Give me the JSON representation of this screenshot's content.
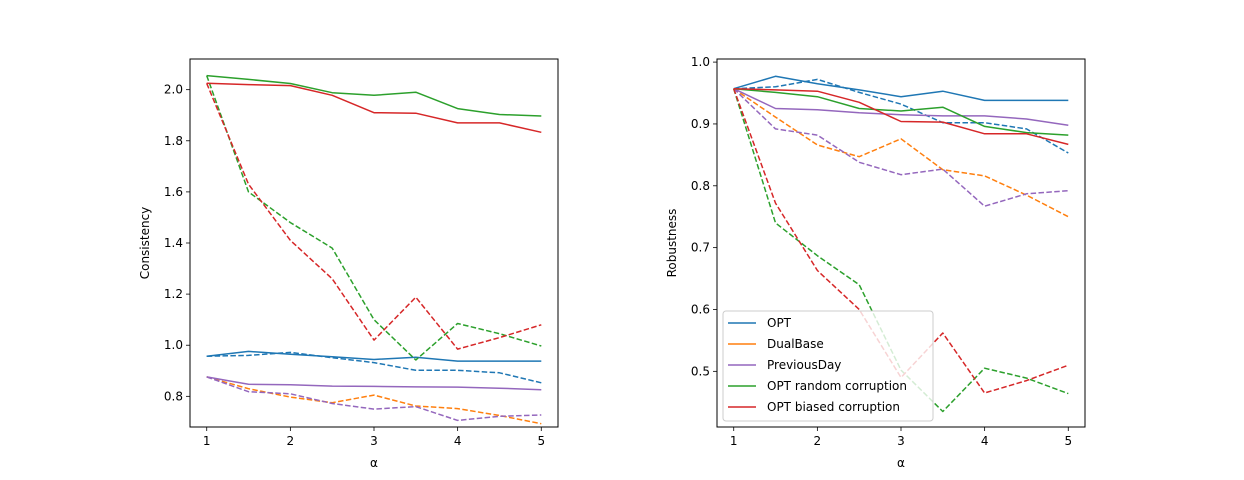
{
  "colors": {
    "OPT": "#1f77b4",
    "DualBase": "#ff7f0e",
    "PreviousDay": "#9467bd",
    "OPT random corruption": "#2ca02c",
    "OPT biased corruption": "#d62728"
  },
  "legend": {
    "location": "lower-left of right panel",
    "entries": [
      "OPT",
      "DualBase",
      "PreviousDay",
      "OPT random corruption",
      "OPT biased corruption"
    ]
  },
  "chart_data": [
    {
      "type": "line",
      "title": "",
      "xlabel": "α",
      "ylabel": "Consistency",
      "xlim": [
        0.8,
        5.2
      ],
      "ylim": [
        0.68,
        2.12
      ],
      "xticks": [
        1,
        2,
        3,
        4,
        5
      ],
      "xtick_labels": [
        "1",
        "2",
        "3",
        "4",
        "5"
      ],
      "yticks": [
        0.8,
        1.0,
        1.2,
        1.4,
        1.6,
        1.8,
        2.0
      ],
      "ytick_labels": [
        "0.8",
        "1.0",
        "1.2",
        "1.4",
        "1.6",
        "1.8",
        "2.0"
      ],
      "grid": false,
      "x": [
        1,
        1.5,
        2,
        2.5,
        3,
        3.5,
        4,
        4.5,
        5
      ],
      "series": [
        {
          "name": "OPT",
          "style": "solid",
          "values": [
            0.957,
            0.976,
            0.965,
            0.955,
            0.944,
            0.953,
            0.938,
            0.938,
            0.938
          ]
        },
        {
          "name": "OPT",
          "style": "dashed",
          "values": [
            0.957,
            0.96,
            0.972,
            0.951,
            0.932,
            0.902,
            0.902,
            0.892,
            0.853
          ]
        },
        {
          "name": "DualBase",
          "style": "dashed",
          "values": [
            0.876,
            0.83,
            0.797,
            0.775,
            0.805,
            0.762,
            0.752,
            0.725,
            0.693
          ]
        },
        {
          "name": "PreviousDay",
          "style": "solid",
          "values": [
            0.876,
            0.847,
            0.845,
            0.84,
            0.839,
            0.837,
            0.836,
            0.832,
            0.826
          ]
        },
        {
          "name": "PreviousDay",
          "style": "dashed",
          "values": [
            0.876,
            0.818,
            0.81,
            0.772,
            0.75,
            0.76,
            0.706,
            0.722,
            0.727
          ]
        },
        {
          "name": "OPT random corruption",
          "style": "solid",
          "values": [
            2.055,
            2.04,
            2.024,
            1.988,
            1.978,
            1.99,
            1.926,
            1.903,
            1.897
          ]
        },
        {
          "name": "OPT random corruption",
          "style": "dashed",
          "values": [
            2.055,
            1.6,
            1.48,
            1.38,
            1.1,
            0.942,
            1.085,
            1.045,
            0.997
          ]
        },
        {
          "name": "OPT biased corruption",
          "style": "solid",
          "values": [
            2.025,
            2.02,
            2.016,
            1.978,
            1.91,
            1.908,
            1.87,
            1.87,
            1.833
          ]
        },
        {
          "name": "OPT biased corruption",
          "style": "dashed",
          "values": [
            2.025,
            1.63,
            1.41,
            1.26,
            1.02,
            1.188,
            0.985,
            1.03,
            1.08
          ]
        }
      ]
    },
    {
      "type": "line",
      "title": "",
      "xlabel": "α",
      "ylabel": "Robustness",
      "xlim": [
        0.8,
        5.2
      ],
      "ylim": [
        0.41,
        1.005
      ],
      "xticks": [
        1,
        2,
        3,
        4,
        5
      ],
      "xtick_labels": [
        "1",
        "2",
        "3",
        "4",
        "5"
      ],
      "yticks": [
        0.5,
        0.6,
        0.7,
        0.8,
        0.9,
        1.0
      ],
      "ytick_labels": [
        "0.5",
        "0.6",
        "0.7",
        "0.8",
        "0.9",
        "1.0"
      ],
      "grid": false,
      "x": [
        1,
        1.5,
        2,
        2.5,
        3,
        3.5,
        4,
        4.5,
        5
      ],
      "series": [
        {
          "name": "OPT",
          "style": "solid",
          "values": [
            0.957,
            0.977,
            0.965,
            0.955,
            0.944,
            0.953,
            0.938,
            0.938,
            0.938
          ]
        },
        {
          "name": "OPT",
          "style": "dashed",
          "values": [
            0.957,
            0.96,
            0.972,
            0.951,
            0.932,
            0.902,
            0.902,
            0.892,
            0.853
          ]
        },
        {
          "name": "DualBase",
          "style": "dashed",
          "values": [
            0.957,
            0.911,
            0.866,
            0.847,
            0.876,
            0.826,
            0.816,
            0.785,
            0.75
          ]
        },
        {
          "name": "PreviousDay",
          "style": "solid",
          "values": [
            0.957,
            0.925,
            0.923,
            0.918,
            0.915,
            0.913,
            0.913,
            0.908,
            0.898
          ]
        },
        {
          "name": "PreviousDay",
          "style": "dashed",
          "values": [
            0.957,
            0.892,
            0.882,
            0.838,
            0.818,
            0.827,
            0.767,
            0.787,
            0.792
          ]
        },
        {
          "name": "OPT random corruption",
          "style": "solid",
          "values": [
            0.957,
            0.951,
            0.944,
            0.925,
            0.921,
            0.927,
            0.896,
            0.886,
            0.882
          ]
        },
        {
          "name": "OPT random corruption",
          "style": "dashed",
          "values": [
            0.957,
            0.74,
            0.687,
            0.64,
            0.502,
            0.435,
            0.505,
            0.489,
            0.464
          ]
        },
        {
          "name": "OPT biased corruption",
          "style": "solid",
          "values": [
            0.957,
            0.955,
            0.953,
            0.935,
            0.904,
            0.903,
            0.884,
            0.884,
            0.867
          ]
        },
        {
          "name": "OPT biased corruption",
          "style": "dashed",
          "values": [
            0.957,
            0.772,
            0.663,
            0.6,
            0.49,
            0.562,
            0.465,
            0.485,
            0.51
          ]
        }
      ]
    }
  ]
}
